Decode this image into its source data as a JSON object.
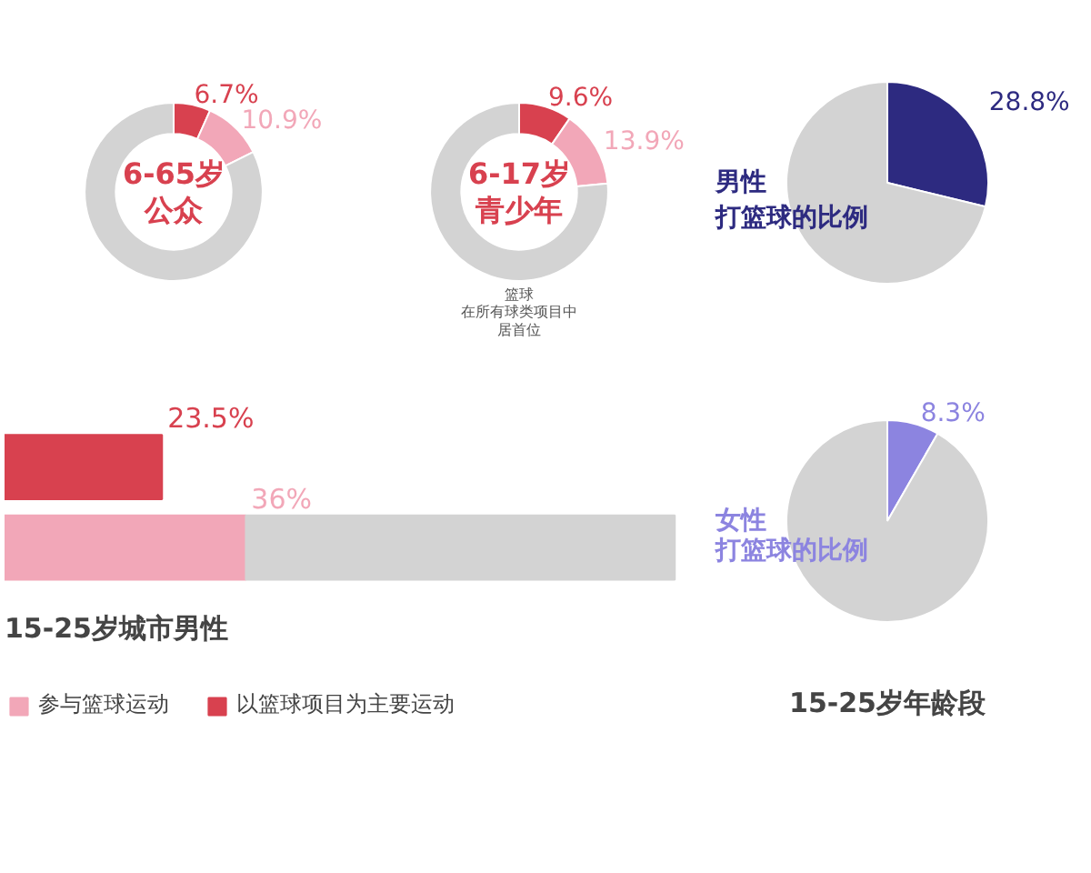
{
  "chart_data": [
    {
      "type": "donut",
      "categories": [
        null,
        null,
        null
      ],
      "values": [
        6.7,
        10.9,
        82.4
      ],
      "colors": [
        "#d8414f",
        "#f2a7b8",
        "#d3d3d3"
      ],
      "value_labels": [
        "6.7%",
        "10.9%",
        null
      ],
      "annotations": [
        "6-65岁",
        "公众"
      ]
    },
    {
      "type": "donut",
      "categories": [
        null,
        null,
        null
      ],
      "values": [
        9.6,
        13.9,
        76.5
      ],
      "colors": [
        "#d8414f",
        "#f2a7b8",
        "#d3d3d3"
      ],
      "value_labels": [
        "9.6%",
        "13.9%",
        null
      ],
      "annotations": [
        "6-17岁",
        "青少年",
        "篮球",
        "在所有球类项目中",
        "居首位"
      ]
    },
    {
      "type": "bar",
      "orientation": "horizontal",
      "stacked": true,
      "title": "15-25岁城市男性",
      "categories": [
        null,
        null
      ],
      "legend": "bottom",
      "series": [
        {
          "name": "以篮球项目为主要运动",
          "color": "#d8414f",
          "values": [
            23.5,
            null
          ],
          "value_labels": [
            "23.5%",
            null
          ]
        },
        {
          "name": "参与篮球运动",
          "color": "#f2a7b8",
          "values": [
            null,
            36
          ],
          "value_labels": [
            null,
            "36%"
          ]
        },
        {
          "color": "#d3d3d3",
          "values": [
            null,
            64
          ]
        }
      ]
    },
    {
      "type": "pie",
      "categories": [
        null,
        null
      ],
      "values": [
        28.8,
        71.2
      ],
      "colors": [
        "#2d2a80",
        "#d3d3d3"
      ],
      "value_labels": [
        "28.8%",
        null
      ],
      "annotations": [
        "男性",
        "打篮球的比例"
      ]
    },
    {
      "type": "pie",
      "title": "15-25岁年龄段",
      "categories": [
        null,
        null
      ],
      "values": [
        8.3,
        91.7
      ],
      "colors": [
        "#8c84e0",
        "#d3d3d3"
      ],
      "value_labels": [
        "8.3%",
        null
      ],
      "annotations": [
        "女性",
        "打篮球的比例"
      ]
    }
  ]
}
